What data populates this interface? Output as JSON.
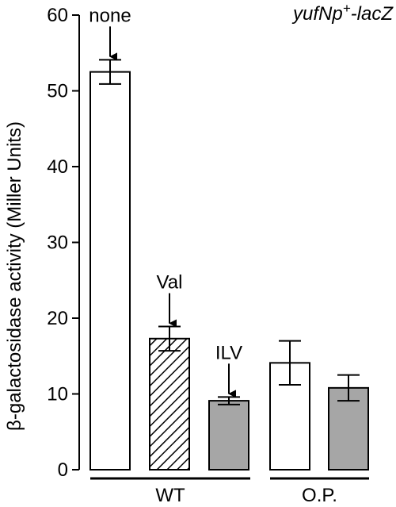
{
  "chart_data": {
    "type": "bar",
    "ylabel": "β-galactosidase activity (Miller Units)",
    "ylim": [
      0,
      60
    ],
    "yticks": [
      0,
      10,
      20,
      30,
      40,
      50,
      60
    ],
    "construct_label": {
      "main": "yufNp",
      "sup": "+",
      "suffix": "-lacZ"
    },
    "bars": [
      {
        "group": "WT",
        "value": 52.5,
        "error": 1.6,
        "fill": "white",
        "annotation": "none"
      },
      {
        "group": "WT",
        "value": 17.3,
        "error": 1.6,
        "fill": "hatched",
        "annotation": "Val"
      },
      {
        "group": "WT",
        "value": 9.1,
        "error": 0.5,
        "fill": "gray",
        "annotation": "ILV"
      },
      {
        "group": "O.P.",
        "value": 14.1,
        "error": 2.9,
        "fill": "white",
        "annotation": ""
      },
      {
        "group": "O.P.",
        "value": 10.8,
        "error": 1.7,
        "fill": "gray",
        "annotation": ""
      }
    ],
    "groups": [
      "WT",
      "O.P."
    ],
    "colors": {
      "white": "#ffffff",
      "gray": "#a6a6a6",
      "stroke": "#000000"
    }
  }
}
